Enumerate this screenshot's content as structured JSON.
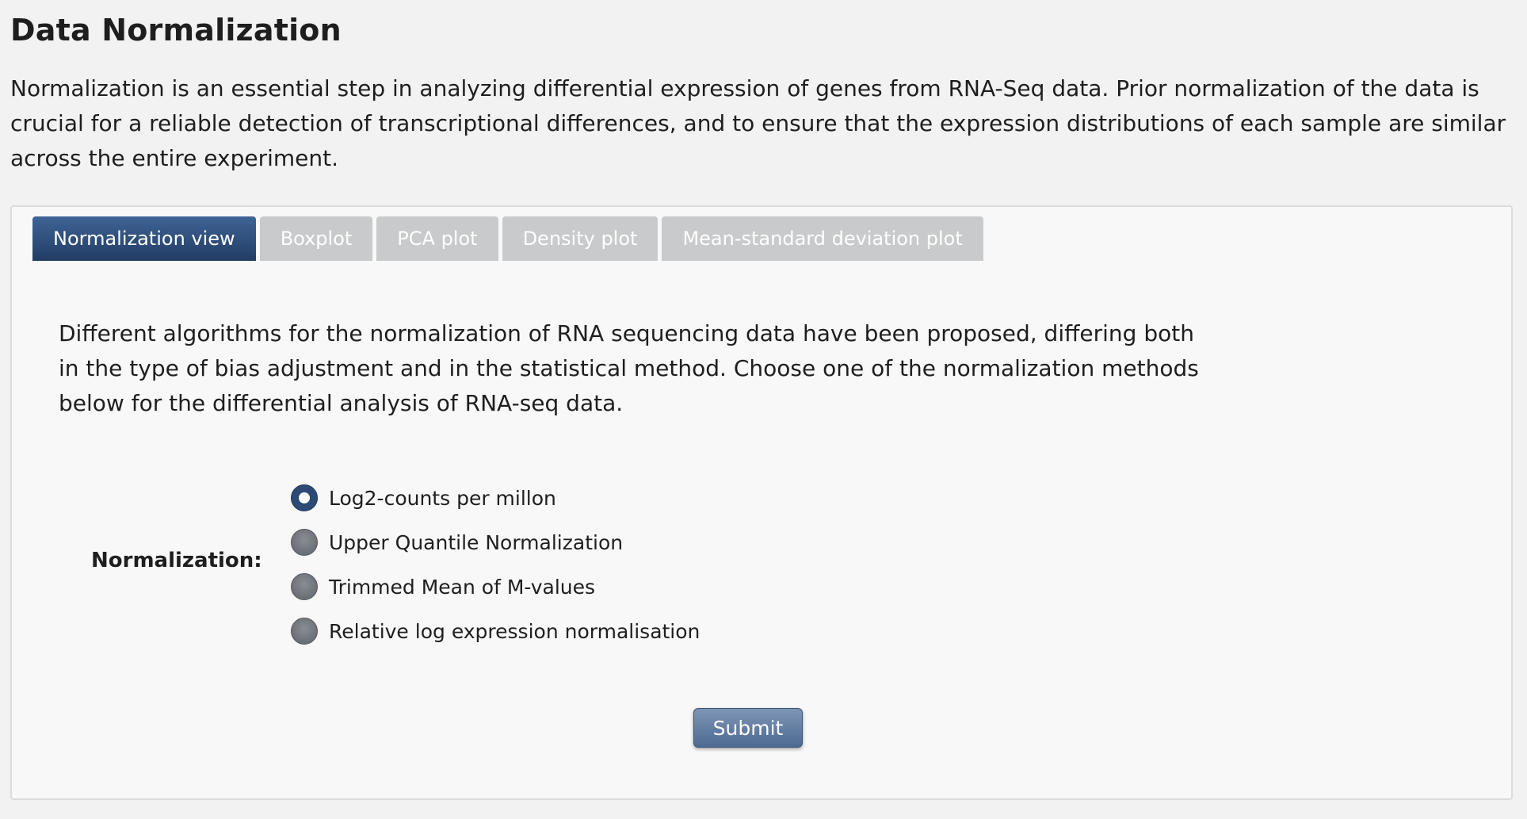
{
  "header": {
    "title": "Data Normalization",
    "intro": "Normalization is an essential step in analyzing differential expression of genes from RNA-Seq data. Prior normalization of the data is crucial for a reliable detection of transcriptional differences, and to ensure that the expression distributions of each sample are similar across the entire experiment."
  },
  "tabs": [
    {
      "label": "Normalization view",
      "active": true
    },
    {
      "label": "Boxplot",
      "active": false
    },
    {
      "label": "PCA plot",
      "active": false
    },
    {
      "label": "Density plot",
      "active": false
    },
    {
      "label": "Mean-standard deviation plot",
      "active": false
    }
  ],
  "panel": {
    "description": "Different algorithms for the normalization of RNA sequencing data have been proposed, differing both in the type of bias adjustment and in the statistical method. Choose one of the normalization methods below for the differential analysis of RNA-seq data.",
    "normalization_label": "Normalization:",
    "options": [
      {
        "label": "Log2-counts per millon",
        "checked": true
      },
      {
        "label": "Upper Quantile Normalization",
        "checked": false
      },
      {
        "label": "Trimmed Mean of M-values",
        "checked": false
      },
      {
        "label": "Relative log expression normalisation",
        "checked": false
      }
    ],
    "submit_label": "Submit"
  },
  "colors": {
    "active_tab": "#2c4a75",
    "inactive_tab": "#c9cacb",
    "submit": "#5f7aa0",
    "background": "#f2f2f2"
  }
}
